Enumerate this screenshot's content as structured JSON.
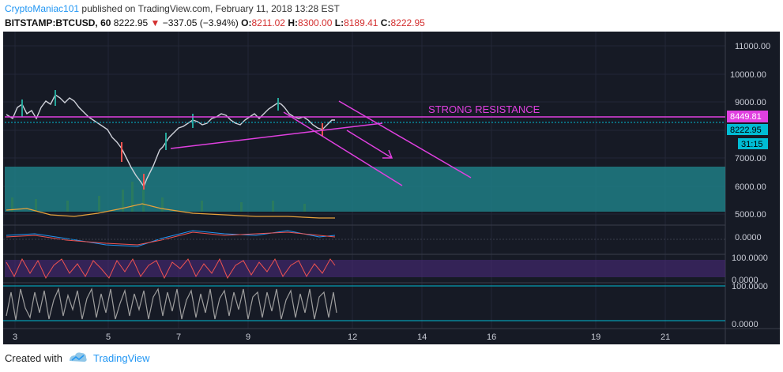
{
  "header": {
    "author": "CryptoManiac101",
    "published_text": " published on TradingView.com, February 11, 2018 13:28 EST",
    "symbol": "BITSTAMP:BTCUSD, 60",
    "last": " 8222.95 ",
    "change": "−337.05 (−3.94%)",
    "o_label": "O:",
    "o_value": "8211.02",
    "h_label": "H:",
    "h_value": "8300.00",
    "l_label": "L:",
    "l_value": "8189.41",
    "c_label": "C:",
    "c_value": "8222.95"
  },
  "chart": {
    "annotation": "STRONG RESISTANCE",
    "price_axis": [
      "11000.00",
      "10000.00",
      "9000.00",
      "7000.00",
      "6000.00",
      "5000.00"
    ],
    "resistance_badge": "8449.81",
    "last_price_badge": "8222.95",
    "countdown_badge": "31:15",
    "indicator_axes": {
      "macd": [
        "0.0000"
      ],
      "stoch": [
        "100.0000",
        "0.0000"
      ],
      "rsi": [
        "100.0000",
        "0.0000"
      ]
    },
    "time_axis": [
      "3",
      "5",
      "7",
      "9",
      "12",
      "14",
      "16",
      "19",
      "21"
    ],
    "colors": {
      "background": "#161a25",
      "resistance": "#e040e0",
      "support_zone": "#1f7e85",
      "candle_up": "#26a69a",
      "candle_down": "#ef5350",
      "last_price": "#00bcd4"
    }
  },
  "footer": {
    "created_with": "Created with",
    "brand": "TradingView"
  }
}
